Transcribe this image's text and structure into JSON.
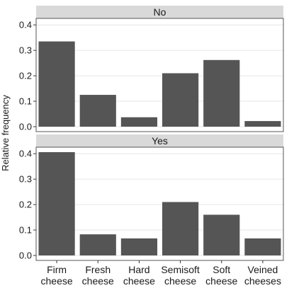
{
  "chart_data": {
    "type": "bar",
    "ylabel": "Relative frequency",
    "xlabel": "",
    "categories": [
      [
        "Firm",
        "cheese"
      ],
      [
        "Fresh",
        "cheese"
      ],
      [
        "Hard",
        "cheese"
      ],
      [
        "Semisoft",
        "cheese"
      ],
      [
        "Soft",
        "cheese"
      ],
      [
        "Veined",
        "cheeses"
      ]
    ],
    "ylim": [
      0,
      0.42
    ],
    "yticks": [
      "0.0",
      "0.1",
      "0.2",
      "0.3",
      "0.4"
    ],
    "grid": true,
    "panels": [
      {
        "label": "No",
        "values": [
          0.335,
          0.125,
          0.037,
          0.21,
          0.262,
          0.022
        ]
      },
      {
        "label": "Yes",
        "values": [
          0.406,
          0.083,
          0.067,
          0.21,
          0.16,
          0.067
        ]
      }
    ],
    "colors": {
      "bar": "#555555",
      "strip": "#d9d9d9",
      "grid": "#e6e6e6"
    }
  }
}
